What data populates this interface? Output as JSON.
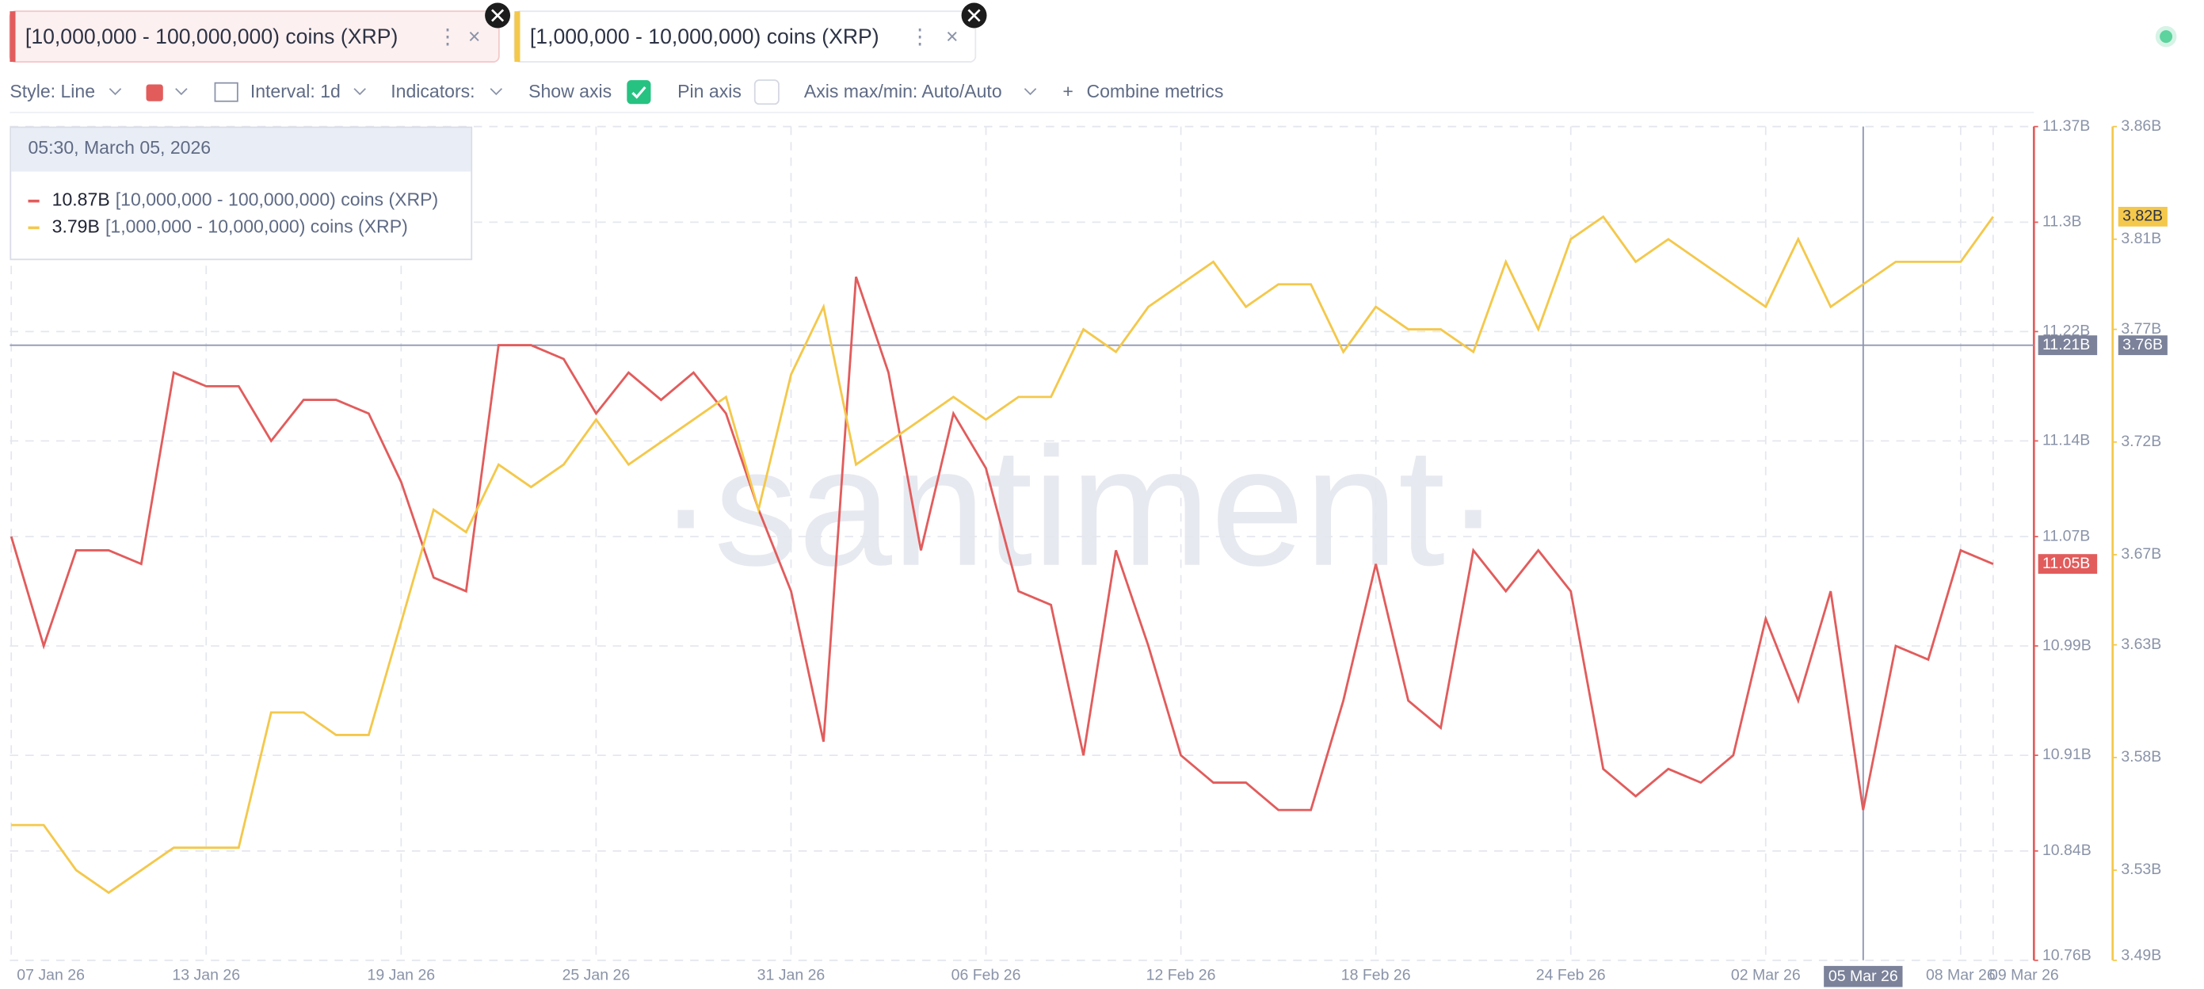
{
  "metric_chips": [
    "[10,000,000 - 100,000,000) coins (XRP)",
    "[1,000,000 - 10,000,000) coins (XRP)"
  ],
  "toolbar": {
    "style": "Style: Line",
    "interval": "Interval: 1d",
    "indicators": "Indicators:",
    "show_axis": "Show axis",
    "pin_axis": "Pin axis",
    "axis_minmax": "Axis max/min: Auto/Auto",
    "combine": "Combine metrics"
  },
  "watermark": "·santiment·",
  "chart_data": {
    "type": "line",
    "x": [
      "07 Jan 26",
      "08 Jan 26",
      "09 Jan 26",
      "10 Jan 26",
      "11 Jan 26",
      "12 Jan 26",
      "13 Jan 26",
      "14 Jan 26",
      "15 Jan 26",
      "16 Jan 26",
      "17 Jan 26",
      "18 Jan 26",
      "19 Jan 26",
      "20 Jan 26",
      "21 Jan 26",
      "22 Jan 26",
      "23 Jan 26",
      "24 Jan 26",
      "25 Jan 26",
      "26 Jan 26",
      "27 Jan 26",
      "28 Jan 26",
      "29 Jan 26",
      "30 Jan 26",
      "31 Jan 26",
      "01 Feb 26",
      "02 Feb 26",
      "03 Feb 26",
      "04 Feb 26",
      "05 Feb 26",
      "06 Feb 26",
      "07 Feb 26",
      "08 Feb 26",
      "09 Feb 26",
      "10 Feb 26",
      "11 Feb 26",
      "12 Feb 26",
      "13 Feb 26",
      "14 Feb 26",
      "15 Feb 26",
      "16 Feb 26",
      "17 Feb 26",
      "18 Feb 26",
      "19 Feb 26",
      "20 Feb 26",
      "21 Feb 26",
      "22 Feb 26",
      "23 Feb 26",
      "24 Feb 26",
      "25 Feb 26",
      "26 Feb 26",
      "27 Feb 26",
      "28 Feb 26",
      "01 Mar 26",
      "02 Mar 26",
      "03 Mar 26",
      "04 Mar 26",
      "05 Mar 26",
      "06 Mar 26",
      "07 Mar 26",
      "08 Mar 26",
      "09 Mar 26"
    ],
    "xticks": [
      "07 Jan 26",
      "13 Jan 26",
      "19 Jan 26",
      "25 Jan 26",
      "31 Jan 26",
      "06 Feb 26",
      "12 Feb 26",
      "18 Feb 26",
      "24 Feb 26",
      "02 Mar 26",
      "08 Mar 26",
      "09 Mar 26"
    ],
    "series": [
      {
        "name": "[10,000,000 - 100,000,000) coins (XRP)",
        "color": "#e25c5c",
        "axis": "y",
        "values": [
          11.07,
          10.99,
          11.06,
          11.06,
          11.05,
          11.19,
          11.18,
          11.18,
          11.14,
          11.17,
          11.17,
          11.16,
          11.11,
          11.04,
          11.03,
          11.21,
          11.21,
          11.2,
          11.16,
          11.19,
          11.17,
          11.19,
          11.16,
          11.09,
          11.03,
          10.92,
          11.26,
          11.19,
          11.06,
          11.16,
          11.12,
          11.03,
          11.02,
          10.91,
          11.06,
          10.99,
          10.91,
          10.89,
          10.89,
          10.87,
          10.87,
          10.95,
          11.05,
          10.95,
          10.93,
          11.06,
          11.03,
          11.06,
          11.03,
          10.9,
          10.88,
          10.9,
          10.89,
          10.91,
          11.01,
          10.95,
          11.03,
          10.87,
          10.99,
          10.98,
          11.06,
          11.05
        ]
      },
      {
        "name": "[1,000,000 - 10,000,000) coins (XRP)",
        "color": "#f4c84b",
        "axis": "y2",
        "values": [
          3.55,
          3.55,
          3.53,
          3.52,
          3.53,
          3.54,
          3.54,
          3.54,
          3.6,
          3.6,
          3.59,
          3.59,
          3.64,
          3.69,
          3.68,
          3.71,
          3.7,
          3.71,
          3.73,
          3.71,
          3.72,
          3.73,
          3.74,
          3.69,
          3.75,
          3.78,
          3.71,
          3.72,
          3.73,
          3.74,
          3.73,
          3.74,
          3.74,
          3.77,
          3.76,
          3.78,
          3.79,
          3.8,
          3.78,
          3.79,
          3.79,
          3.76,
          3.78,
          3.77,
          3.77,
          3.76,
          3.8,
          3.77,
          3.81,
          3.82,
          3.8,
          3.81,
          3.8,
          3.79,
          3.78,
          3.81,
          3.78,
          3.79,
          3.8,
          3.8,
          3.8,
          3.82
        ]
      }
    ],
    "ylim": [
      10.76,
      11.37
    ],
    "yticks": [
      {
        "value": 10.76,
        "label": "10.76B"
      },
      {
        "value": 10.84,
        "label": "10.84B"
      },
      {
        "value": 10.91,
        "label": "10.91B"
      },
      {
        "value": 10.99,
        "label": "10.99B"
      },
      {
        "value": 11.07,
        "label": "11.07B"
      },
      {
        "value": 11.14,
        "label": "11.14B"
      },
      {
        "value": 11.22,
        "label": "11.22B"
      },
      {
        "value": 11.3,
        "label": "11.3B"
      },
      {
        "value": 11.37,
        "label": "11.37B"
      }
    ],
    "y2lim": [
      3.49,
      3.86
    ],
    "y2ticks": [
      {
        "value": 3.49,
        "label": "3.49B"
      },
      {
        "value": 3.53,
        "label": "3.53B"
      },
      {
        "value": 3.58,
        "label": "3.58B"
      },
      {
        "value": 3.63,
        "label": "3.63B"
      },
      {
        "value": 3.67,
        "label": "3.67B"
      },
      {
        "value": 3.72,
        "label": "3.72B"
      },
      {
        "value": 3.77,
        "label": "3.77B"
      },
      {
        "value": 3.81,
        "label": "3.81B"
      },
      {
        "value": 3.86,
        "label": "3.86B"
      }
    ],
    "grid": true,
    "last_labels": [
      "11.05B",
      "3.82B"
    ],
    "crosshair": {
      "x": "05 Mar 26",
      "y": 11.21,
      "y_label": "11.21B",
      "y2_label": "3.76B"
    },
    "tooltip": {
      "title": "05:30, March 05, 2026",
      "labels": [
        "10.87B",
        "3.79B"
      ]
    }
  }
}
